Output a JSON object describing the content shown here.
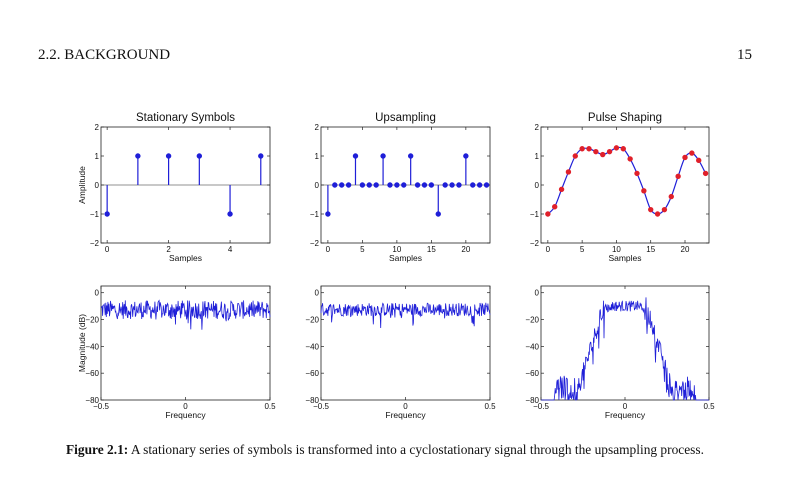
{
  "header": {
    "section": "2.2.  BACKGROUND",
    "page_number": "15"
  },
  "caption": {
    "label": "Figure 2.1:",
    "text": " A stationary series of symbols is transformed into a cyclostationary signal through the upsampling process."
  },
  "chart_data": [
    {
      "type": "stem",
      "title": "Stationary Symbols",
      "xlabel": "Samples",
      "ylabel": "Amplitude",
      "xlim": [
        -0.2,
        5.3
      ],
      "ylim": [
        -2,
        2
      ],
      "xticks": [
        0,
        2,
        4
      ],
      "yticks": [
        -2,
        -1,
        0,
        1,
        2
      ],
      "x": [
        0,
        1,
        2,
        3,
        4,
        5
      ],
      "y": [
        -1,
        1,
        1,
        1,
        -1,
        1
      ]
    },
    {
      "type": "stem",
      "title": "Upsampling",
      "xlabel": "Samples",
      "ylabel": "",
      "xlim": [
        -1,
        23.5
      ],
      "ylim": [
        -2,
        2
      ],
      "xticks": [
        0,
        5,
        10,
        15,
        20
      ],
      "yticks": [
        -2,
        -1,
        0,
        1,
        2
      ],
      "x": [
        0,
        1,
        2,
        3,
        4,
        5,
        6,
        7,
        8,
        9,
        10,
        11,
        12,
        13,
        14,
        15,
        16,
        17,
        18,
        19,
        20,
        21,
        22,
        23
      ],
      "y": [
        -1,
        0,
        0,
        0,
        1,
        0,
        0,
        0,
        1,
        0,
        0,
        0,
        1,
        0,
        0,
        0,
        -1,
        0,
        0,
        0,
        1,
        0,
        0,
        0
      ]
    },
    {
      "type": "line",
      "title": "Pulse Shaping",
      "xlabel": "Samples",
      "ylabel": "",
      "xlim": [
        -1,
        23.5
      ],
      "ylim": [
        -2,
        2
      ],
      "xticks": [
        0,
        5,
        10,
        15,
        20
      ],
      "yticks": [
        -2,
        -1,
        0,
        1,
        2
      ],
      "x": [
        0,
        1,
        2,
        3,
        4,
        5,
        6,
        7,
        8,
        9,
        10,
        11,
        12,
        13,
        14,
        15,
        16,
        17,
        18,
        19,
        20,
        21,
        22,
        23
      ],
      "y": [
        -1.0,
        -0.75,
        -0.15,
        0.45,
        1.0,
        1.25,
        1.25,
        1.15,
        1.05,
        1.15,
        1.28,
        1.25,
        0.9,
        0.4,
        -0.2,
        -0.85,
        -1.0,
        -0.85,
        -0.4,
        0.3,
        0.95,
        1.1,
        0.85,
        0.4
      ]
    },
    {
      "type": "line",
      "title": "",
      "xlabel": "Frequency",
      "ylabel": "Magnitude (dB)",
      "xlim": [
        -0.5,
        0.5
      ],
      "ylim": [
        -80,
        5
      ],
      "xticks": [
        -0.5,
        0,
        0.5
      ],
      "yticks": [
        -80,
        -60,
        -40,
        -20,
        0
      ],
      "shape": "flat-noise",
      "level_db": -12,
      "spread_db": 14
    },
    {
      "type": "line",
      "title": "",
      "xlabel": "Frequency",
      "ylabel": "",
      "xlim": [
        -0.5,
        0.5
      ],
      "ylim": [
        -80,
        5
      ],
      "xticks": [
        -0.5,
        0,
        0.5
      ],
      "yticks": [
        -80,
        -60,
        -40,
        -20,
        0
      ],
      "shape": "flat-noise",
      "level_db": -12,
      "spread_db": 10
    },
    {
      "type": "line",
      "title": "",
      "xlabel": "Frequency",
      "ylabel": "",
      "xlim": [
        -0.5,
        0.5
      ],
      "ylim": [
        -80,
        5
      ],
      "xticks": [
        -0.5,
        0,
        0.5
      ],
      "yticks": [
        -80,
        -60,
        -40,
        -20,
        0
      ],
      "shape": "bandpass-noise",
      "level_db": -8,
      "passband_edge": 0.12,
      "floor_db": -80
    }
  ]
}
